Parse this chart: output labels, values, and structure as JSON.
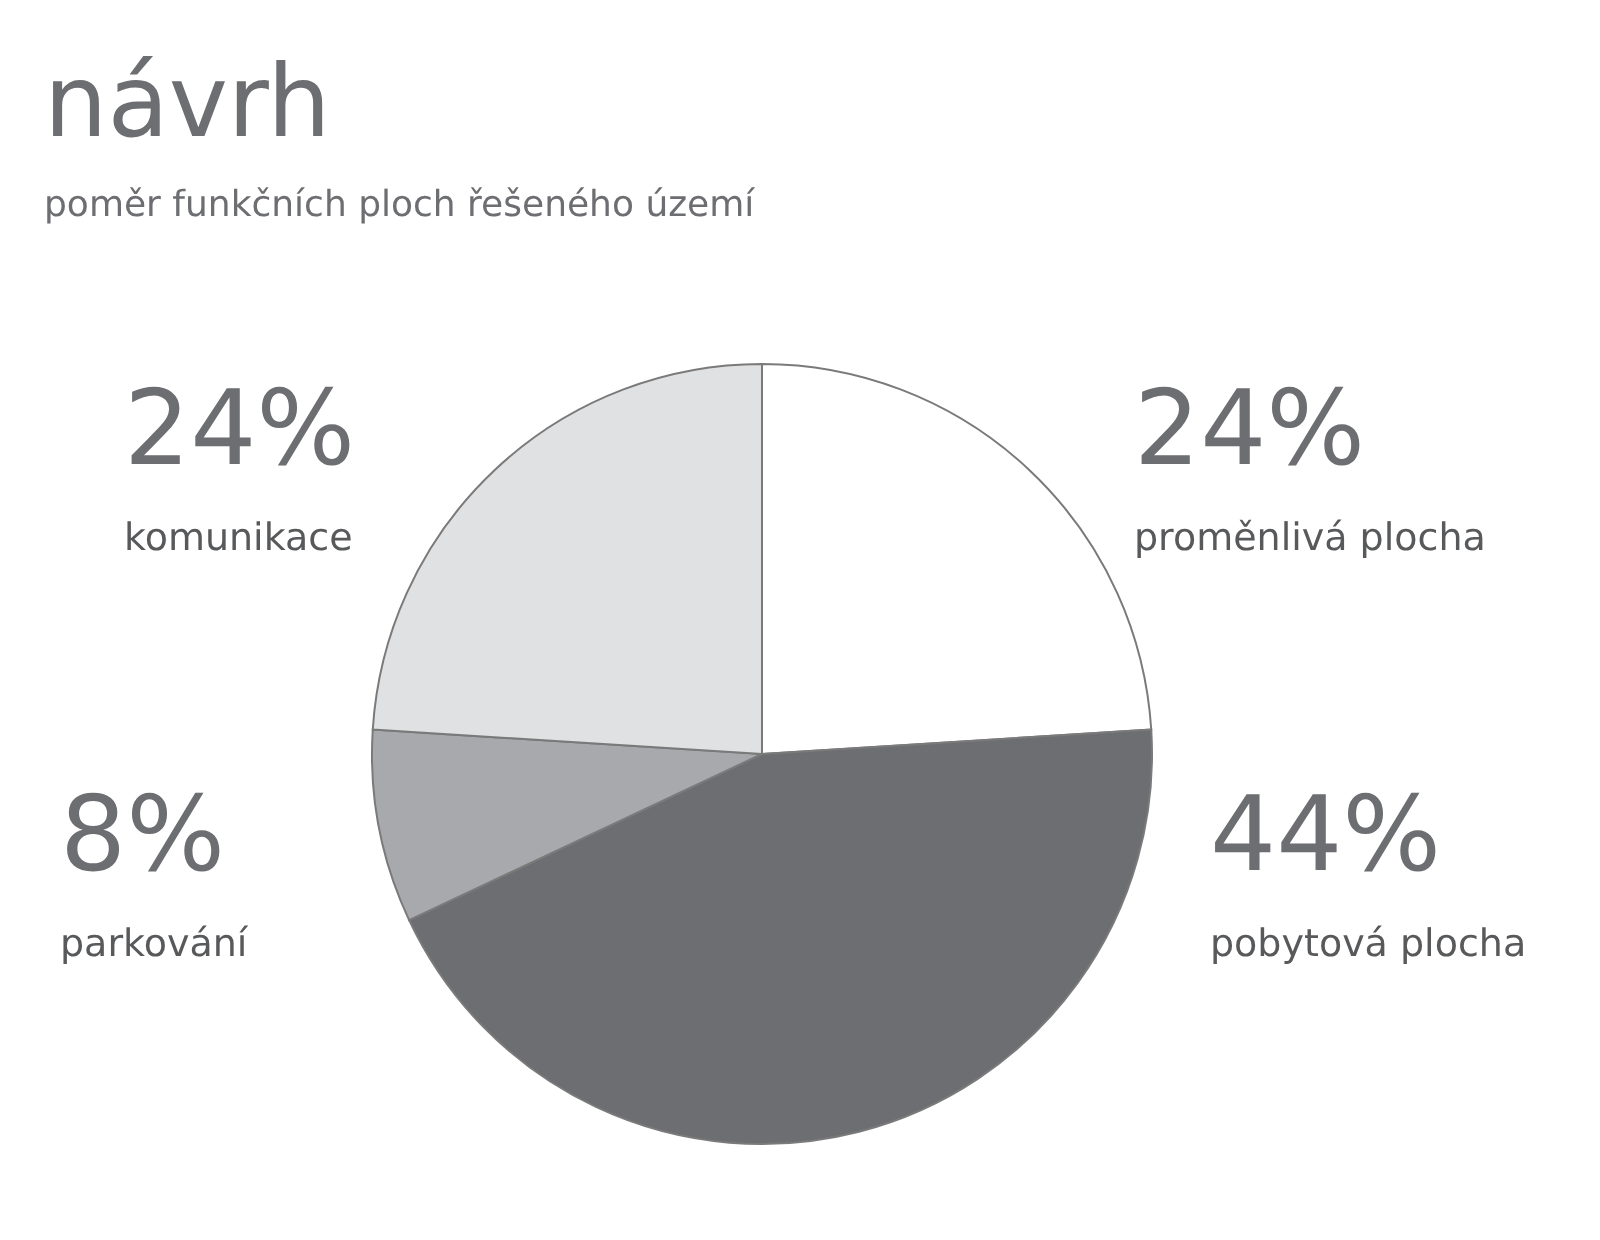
{
  "chart_data": {
    "type": "pie",
    "title": "návrh",
    "subtitle": "poměr funkčních ploch řešeného území",
    "categories": [
      "proměnlivá plocha",
      "pobytová plocha",
      "parkování",
      "komunikace"
    ],
    "values": [
      24,
      44,
      8,
      24
    ],
    "value_labels": [
      "24%",
      "44%",
      "8%",
      "24%"
    ],
    "colors": [
      "#ffffff",
      "#6d6e71",
      "#a7a9ac",
      "#e0e1e3"
    ]
  }
}
